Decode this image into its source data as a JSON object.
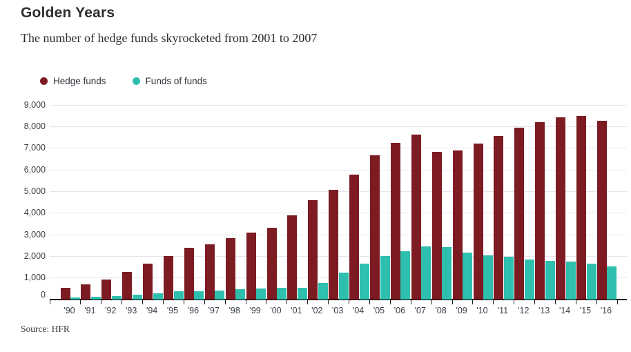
{
  "header": {
    "title": "Golden Years",
    "subtitle": "The number of hedge funds skyrocketed from 2001 to 2007"
  },
  "source": "Source: HFR",
  "chart_data": {
    "type": "bar",
    "title": "Golden Years",
    "subtitle": "The number of hedge funds skyrocketed from 2001 to 2007",
    "categories": [
      "'90",
      "'91",
      "'92",
      "'93",
      "'94",
      "'95",
      "'96",
      "'97",
      "'98",
      "'99",
      "'00",
      "'01",
      "'02",
      "'03",
      "'04",
      "'05",
      "'06",
      "'07",
      "'08",
      "'09",
      "'10",
      "'11",
      "'12",
      "'13",
      "'14",
      "'15",
      "'16"
    ],
    "series": [
      {
        "name": "Hedge funds",
        "color": "#7d1b23",
        "values": [
          530,
          694,
          937,
          1277,
          1654,
          2006,
          2392,
          2563,
          2848,
          3102,
          3335,
          3904,
          4598,
          5065,
          5782,
          6665,
          7241,
          7634,
          6845,
          6883,
          7200,
          7561,
          7940,
          8190,
          8415,
          8474,
          8280
        ]
      },
      {
        "name": "Funds of funds",
        "color": "#2fbfae",
        "values": [
          80,
          127,
          171,
          228,
          291,
          392,
          391,
          426,
          477,
          515,
          538,
          550,
          781,
          1232,
          1654,
          1996,
          2241,
          2462,
          2429,
          2178,
          2047,
          1994,
          1867,
          1780,
          1758,
          1675,
          1541
        ]
      }
    ],
    "xlabel": "",
    "ylabel": "",
    "ylim": [
      0,
      9000
    ],
    "ytick_interval": 1000,
    "ytick_labels": [
      "0",
      "1,000",
      "2,000",
      "3,000",
      "4,000",
      "5,000",
      "6,000",
      "7,000",
      "8,000",
      "9,000"
    ],
    "grid": true,
    "legend_position": "top-left",
    "source": "Source: HFR"
  }
}
